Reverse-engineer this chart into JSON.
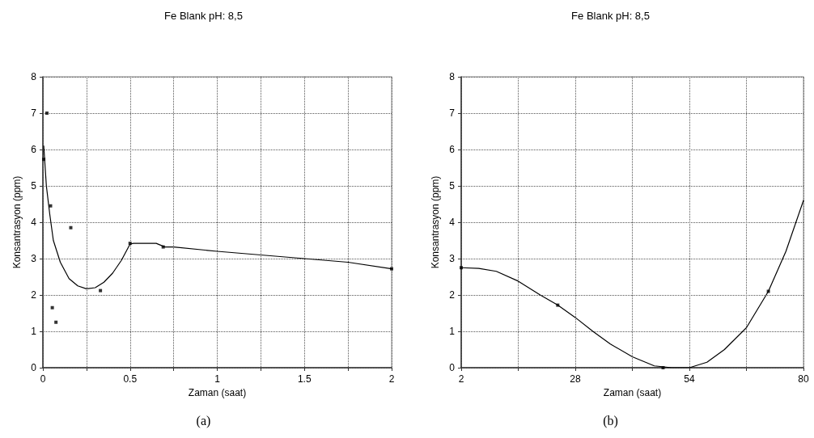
{
  "chart_data": [
    {
      "type": "line",
      "title": "Fe Blank pH: 8,5",
      "xlabel": "Zaman (saat)",
      "ylabel": "Konsantrasyon (ppm)",
      "annotations": [
        "(a)"
      ],
      "xlim": [
        0,
        2
      ],
      "ylim": [
        0,
        8
      ],
      "xticks": [
        0,
        {
          "value": 0.25,
          "label": null
        },
        0.5,
        {
          "value": 0.75,
          "label": null
        },
        1,
        {
          "value": 1.25,
          "label": null
        },
        1.5,
        {
          "value": 1.75,
          "label": null
        },
        2
      ],
      "yticks": [
        0,
        1,
        2,
        3,
        4,
        5,
        6,
        7,
        8
      ],
      "grid": true,
      "line_style": "solid",
      "series": [
        {
          "color": "#000000",
          "marker": "none",
          "x": [
            0.005,
            0.02,
            0.04,
            0.06,
            0.1,
            0.15,
            0.2,
            0.25,
            0.3,
            0.35,
            0.4,
            0.45,
            0.5,
            0.52,
            0.65,
            0.7,
            0.75,
            1,
            1.25,
            1.5,
            1.75,
            2
          ],
          "values": [
            6.1,
            5.0,
            4.2,
            3.5,
            2.9,
            2.45,
            2.25,
            2.17,
            2.2,
            2.35,
            2.6,
            2.95,
            3.4,
            3.42,
            3.42,
            3.32,
            3.32,
            3.2,
            3.1,
            3.0,
            2.9,
            2.72
          ]
        },
        {
          "type": "scatter",
          "color": "#000000",
          "marker": "square",
          "x": [
            0.005,
            0.023,
            0.044,
            0.054,
            0.075,
            0.16,
            0.33,
            0.5,
            0.69,
            2
          ],
          "values": [
            5.73,
            7.0,
            4.45,
            1.65,
            1.25,
            3.85,
            2.12,
            3.42,
            3.32,
            2.72
          ]
        }
      ]
    },
    {
      "type": "line",
      "title": "Fe Blank pH: 8,5",
      "xlabel": "Zaman (saat)",
      "ylabel": "Konsantrasyon (ppm)",
      "annotations": [
        "(b)"
      ],
      "xlim": [
        2,
        80
      ],
      "ylim": [
        0,
        8
      ],
      "xticks": [
        2,
        {
          "value": 15,
          "label": null
        },
        28,
        {
          "value": 41,
          "label": null
        },
        54,
        {
          "value": 67,
          "label": null
        },
        80
      ],
      "yticks": [
        0,
        1,
        2,
        3,
        4,
        5,
        6,
        7,
        8
      ],
      "grid": true,
      "line_style": "solid",
      "series": [
        {
          "color": "#000000",
          "marker": "none",
          "x": [
            2,
            6,
            10,
            15,
            20,
            24,
            28,
            32,
            36,
            41,
            46,
            50,
            54,
            58,
            62,
            67,
            72,
            76,
            80
          ],
          "values": [
            2.75,
            2.73,
            2.65,
            2.38,
            2.0,
            1.72,
            1.38,
            1.0,
            0.65,
            0.3,
            0.05,
            0,
            0,
            0.15,
            0.5,
            1.1,
            2.1,
            3.2,
            4.6
          ]
        },
        {
          "type": "scatter",
          "color": "#000000",
          "marker": "square",
          "x": [
            2,
            24,
            48,
            72
          ],
          "values": [
            2.75,
            1.72,
            0,
            2.1
          ]
        }
      ]
    }
  ]
}
